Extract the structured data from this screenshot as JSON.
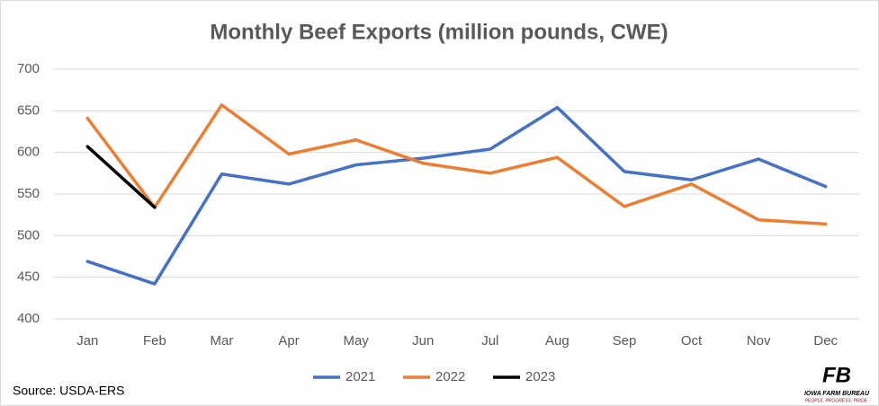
{
  "chart_data": {
    "type": "line",
    "title": "Monthly Beef Exports (million pounds, CWE)",
    "categories": [
      "Jan",
      "Feb",
      "Mar",
      "Apr",
      "May",
      "Jun",
      "Jul",
      "Aug",
      "Sep",
      "Oct",
      "Nov",
      "Dec"
    ],
    "series": [
      {
        "name": "2021",
        "color": "#4472c4",
        "values": [
          469,
          442,
          574,
          562,
          585,
          593,
          604,
          654,
          577,
          567,
          592,
          559
        ]
      },
      {
        "name": "2022",
        "color": "#ed7d31",
        "values": [
          641,
          534,
          657,
          598,
          615,
          587,
          575,
          594,
          535,
          562,
          519,
          514
        ]
      },
      {
        "name": "2023",
        "color": "#000000",
        "values": [
          607,
          534,
          null,
          null,
          null,
          null,
          null,
          null,
          null,
          null,
          null,
          null
        ]
      }
    ],
    "ylim": [
      400,
      700
    ],
    "yticks": [
      400,
      450,
      500,
      550,
      600,
      650,
      700
    ],
    "grid": true,
    "legend": "bottom",
    "source": "Source: USDA-ERS",
    "logo": {
      "mark": "FB",
      "name": "IOWA FARM BUREAU",
      "tagline": "PEOPLE. PROGRESS. PRIDE."
    }
  }
}
